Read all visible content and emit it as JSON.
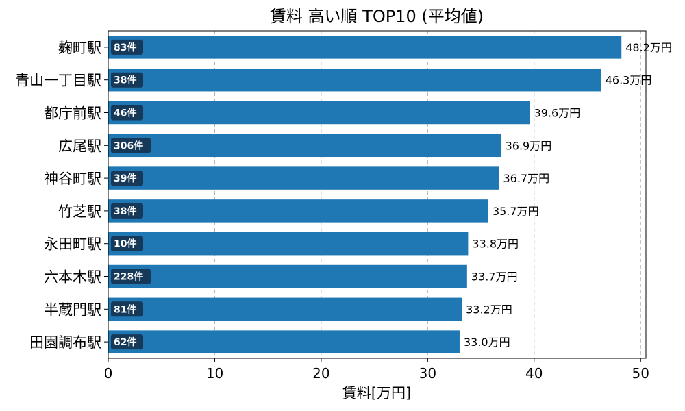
{
  "chart_data": {
    "type": "bar",
    "orientation": "horizontal",
    "title": "賃料 高い順 TOP10 (平均値)",
    "xlabel": "賃料[万円]",
    "ylabel": "",
    "xlim": [
      0,
      50.5
    ],
    "xticks": [
      "0",
      "10",
      "20",
      "30",
      "40",
      "50"
    ],
    "grid": "vertical dashed",
    "bar_color": "#1f77b4",
    "badge_color": "#16395a",
    "categories": [
      "麹町駅",
      "青山一丁目駅",
      "都庁前駅",
      "広尾駅",
      "神谷町駅",
      "竹芝駅",
      "永田町駅",
      "六本木駅",
      "半蔵門駅",
      "田園調布駅"
    ],
    "values": [
      48.2,
      46.3,
      39.6,
      36.9,
      36.7,
      35.7,
      33.8,
      33.7,
      33.2,
      33.0
    ],
    "value_labels": [
      "48.2万円",
      "46.3万円",
      "39.6万円",
      "36.9万円",
      "36.7万円",
      "35.7万円",
      "33.8万円",
      "33.7万円",
      "33.2万円",
      "33.0万円"
    ],
    "count_labels": [
      "83件",
      "38件",
      "46件",
      "306件",
      "39件",
      "38件",
      "10件",
      "228件",
      "81件",
      "62件"
    ]
  }
}
